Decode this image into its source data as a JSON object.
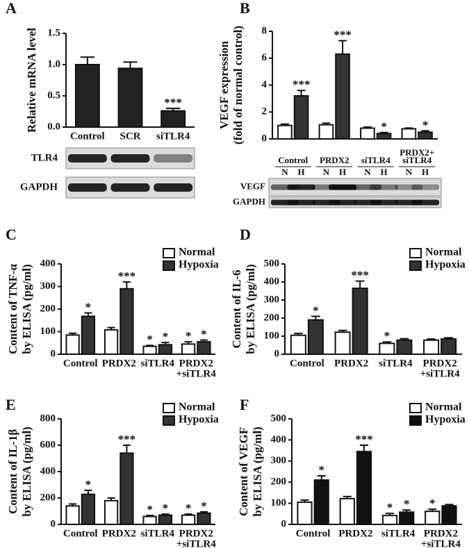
{
  "chart_data": [
    {
      "type": "bar",
      "panel": "A",
      "ylabel": [
        "Relative mRNA level"
      ],
      "categories": [
        "Control",
        "SCR",
        "siTLR4"
      ],
      "values": [
        1.0,
        0.94,
        0.26
      ],
      "errors": [
        0.12,
        0.1,
        0.04
      ],
      "annotations": [
        null,
        null,
        "***"
      ],
      "color": "#222222",
      "ylim": [
        0,
        1.5
      ],
      "yticks": [
        {
          "value": 0,
          "label": "0.0"
        },
        {
          "value": 0.5,
          "label": "0.5"
        },
        {
          "value": 1.0,
          "label": "1.0"
        },
        {
          "value": 1.5,
          "label": "1.5"
        }
      ],
      "blot": {
        "rows": [
          "TLR4",
          "GAPDH"
        ]
      }
    },
    {
      "type": "bar",
      "panel": "B",
      "ylabel": [
        "VEGF expression",
        "(fold of normal control)"
      ],
      "categories": [
        "Control",
        "PRDX2",
        "siTLR4",
        "PRDX2+ siTLR4"
      ],
      "series": [
        {
          "name": "N",
          "color": "#ffffff",
          "values": [
            1.0,
            1.05,
            0.8,
            0.75
          ],
          "errors": [
            0.1,
            0.12,
            0.08,
            0.06
          ],
          "annotations": [
            null,
            null,
            null,
            null
          ]
        },
        {
          "name": "H",
          "color": "#333333",
          "values": [
            3.2,
            6.3,
            0.4,
            0.5
          ],
          "errors": [
            0.4,
            1.0,
            0.08,
            0.1
          ],
          "annotations": [
            "***",
            "***",
            "*",
            "*"
          ]
        }
      ],
      "ylim": [
        0,
        8
      ],
      "yticks": [
        0,
        2,
        4,
        6,
        8
      ],
      "blot": {
        "rows": [
          "VEGF",
          "GAPDH"
        ]
      }
    },
    {
      "type": "bar",
      "panel": "C",
      "ylabel": [
        "Content of TNF-α",
        "by ELISA (pg/ml)"
      ],
      "categories": [
        "Control",
        "PRDX2",
        "siTLR4",
        "PRDX2 +siTLR4"
      ],
      "series": [
        {
          "name": "Normal",
          "color": "#ffffff",
          "values": [
            85,
            108,
            35,
            45
          ],
          "errors": [
            8,
            10,
            4,
            10
          ],
          "annotations": [
            null,
            null,
            "*",
            "*"
          ]
        },
        {
          "name": "Hypoxia",
          "color": "#333333",
          "values": [
            168,
            290,
            42,
            55
          ],
          "errors": [
            15,
            30,
            10,
            8
          ],
          "annotations": [
            "*",
            "***",
            "*",
            "*"
          ]
        }
      ],
      "ylim": [
        0,
        400
      ],
      "yticks": [
        0,
        100,
        200,
        300,
        400
      ],
      "legend": "upper right"
    },
    {
      "type": "bar",
      "panel": "D",
      "ylabel": [
        "Content of IL-6",
        "by ELISA (pg/ml)"
      ],
      "categories": [
        "Control",
        "PRDX2",
        "siTLR4",
        "PRDX2 +siTLR4"
      ],
      "series": [
        {
          "name": "Normal",
          "color": "#ffffff",
          "values": [
            105,
            122,
            60,
            78
          ],
          "errors": [
            10,
            10,
            8,
            6
          ],
          "annotations": [
            null,
            null,
            "*",
            null
          ]
        },
        {
          "name": "Hypoxia",
          "color": "#333333",
          "values": [
            190,
            365,
            78,
            85
          ],
          "errors": [
            20,
            40,
            8,
            6
          ],
          "annotations": [
            "*",
            "***",
            null,
            null
          ]
        }
      ],
      "ylim": [
        0,
        500
      ],
      "yticks": [
        0,
        100,
        200,
        300,
        400,
        500
      ],
      "legend": "upper right"
    },
    {
      "type": "bar",
      "panel": "E",
      "ylabel": [
        "Content of IL-1β",
        "by ELISA (pg/ml)"
      ],
      "categories": [
        "Control",
        "PRDX2",
        "siTLR4",
        "PRDX2 +siTLR4"
      ],
      "series": [
        {
          "name": "Normal",
          "color": "#ffffff",
          "values": [
            140,
            180,
            60,
            70
          ],
          "errors": [
            15,
            20,
            8,
            8
          ],
          "annotations": [
            null,
            null,
            "*",
            "*"
          ]
        },
        {
          "name": "Hypoxia",
          "color": "#333333",
          "values": [
            228,
            540,
            70,
            85
          ],
          "errors": [
            30,
            60,
            8,
            10
          ],
          "annotations": [
            "*",
            "***",
            "*",
            "*"
          ]
        }
      ],
      "ylim": [
        0,
        800
      ],
      "yticks": [
        0,
        200,
        400,
        600,
        800
      ],
      "legend": "upper right"
    },
    {
      "type": "bar",
      "panel": "F",
      "ylabel": [
        "Content of VEGF",
        "by ELISA (pg/ml)"
      ],
      "categories": [
        "Control",
        "PRDX2",
        "siTLR4",
        "PRDX2 +siTLR4"
      ],
      "series": [
        {
          "name": "Normal",
          "color": "#ffffff",
          "values": [
            105,
            122,
            42,
            62
          ],
          "errors": [
            10,
            10,
            10,
            10
          ],
          "annotations": [
            null,
            null,
            "*",
            "*"
          ]
        },
        {
          "name": "Hypoxia",
          "color": "#111111",
          "values": [
            210,
            345,
            58,
            88
          ],
          "errors": [
            20,
            30,
            10,
            6
          ],
          "annotations": [
            "*",
            "***",
            "*",
            null
          ]
        }
      ],
      "ylim": [
        0,
        500
      ],
      "yticks": [
        0,
        100,
        200,
        300,
        400,
        500
      ],
      "legend": "upper right"
    }
  ]
}
